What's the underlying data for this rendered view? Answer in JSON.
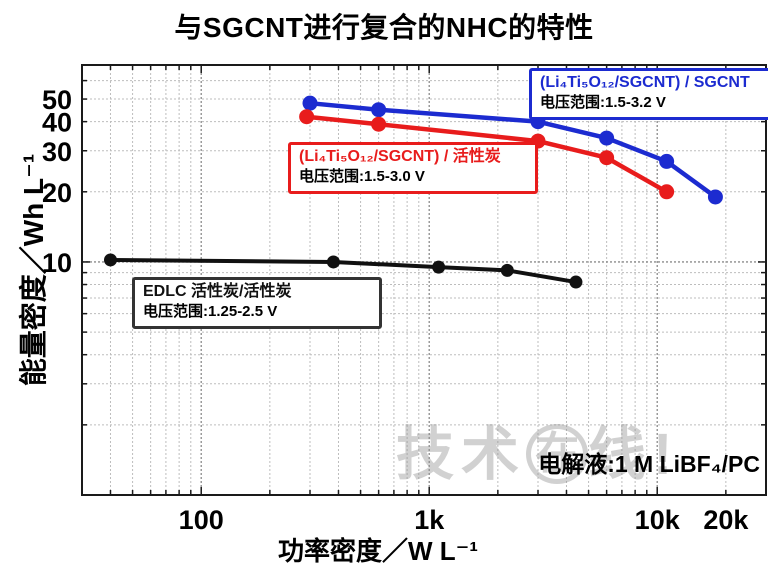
{
  "title": "与SGCNT进行复合的NHC的特性",
  "watermark": {
    "prefix": "技术",
    "circled": "在",
    "suffix": "线!"
  },
  "annotation": {
    "electrolyte": "电解液:1 M LiBF₄/PC"
  },
  "colors": {
    "blue_series": "#1c2bd0",
    "red_series": "#e81c1c",
    "black_series": "#111111",
    "grid_minor": "#bdbdbd",
    "grid_major": "#8c8c8c",
    "frame": "#1a1a1a"
  },
  "chart_data": {
    "type": "line",
    "title": "与SGCNT进行复合的NHC的特性",
    "xlabel": "功率密度／W L⁻¹",
    "ylabel": "能量密度／Wh L⁻¹",
    "x_scale": "log",
    "y_scale": "log",
    "xlim": [
      30,
      30000
    ],
    "ylim": [
      1,
      70
    ],
    "grid": "log minor dotted, major darker",
    "legend_position": "inside boxes near each curve",
    "x_ticks": [
      {
        "value": 100,
        "label": "100"
      },
      {
        "value": 1000,
        "label": "1k"
      },
      {
        "value": 10000,
        "label": "10k"
      },
      {
        "value": 20000,
        "label": "20k"
      }
    ],
    "y_ticks": [
      {
        "value": 10,
        "label": "10"
      },
      {
        "value": 20,
        "label": "20"
      },
      {
        "value": 30,
        "label": "30"
      },
      {
        "value": 40,
        "label": "40"
      },
      {
        "value": 50,
        "label": "50"
      }
    ],
    "series": [
      {
        "name": "(Li₄Ti₅O₁₂/SGCNT) / SGCNT",
        "voltage_range": "电压范围:1.5-3.2 V",
        "color": "#1c2bd0",
        "points": [
          [
            300,
            48
          ],
          [
            600,
            45
          ],
          [
            3000,
            40
          ],
          [
            6000,
            34
          ],
          [
            11000,
            27
          ],
          [
            18000,
            19
          ]
        ]
      },
      {
        "name": "(Li₄Ti₅O₁₂/SGCNT) / 活性炭",
        "voltage_range": "电压范围:1.5-3.0 V",
        "color": "#e81c1c",
        "points": [
          [
            290,
            42
          ],
          [
            600,
            39
          ],
          [
            3000,
            33
          ],
          [
            6000,
            28
          ],
          [
            11000,
            20
          ]
        ]
      },
      {
        "name": "EDLC 活性炭/活性炭",
        "voltage_range": "电压范围:1.25-2.5 V",
        "color": "#111111",
        "points": [
          [
            40,
            10.2
          ],
          [
            380,
            10
          ],
          [
            1100,
            9.5
          ],
          [
            2200,
            9.2
          ],
          [
            4400,
            8.2
          ]
        ]
      }
    ]
  }
}
